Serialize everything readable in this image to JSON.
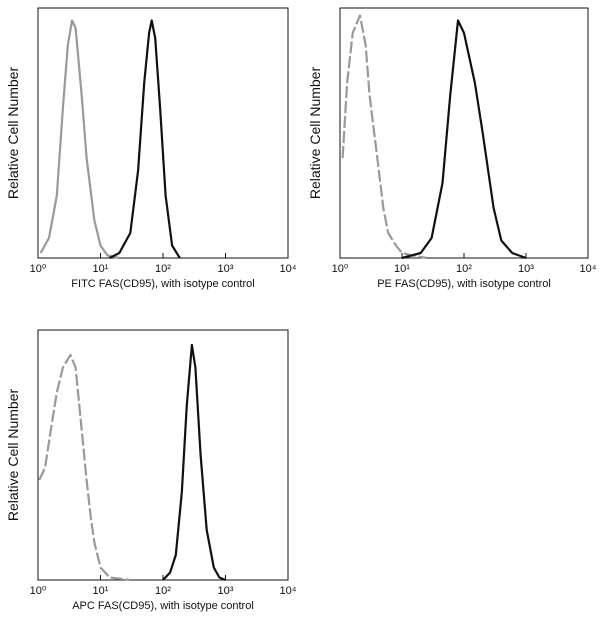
{
  "chart_data": [
    {
      "type": "line",
      "xlabel": "FITC  FAS(CD95),  with isotype control",
      "ylabel": "Relative Cell Number",
      "xscale": "log",
      "xlim": [
        1,
        10000
      ],
      "ylim": [
        0,
        100
      ],
      "xticks": [
        {
          "value": 1,
          "label": "10⁰"
        },
        {
          "value": 10,
          "label": "10¹"
        },
        {
          "value": 100,
          "label": "10²"
        },
        {
          "value": 1000,
          "label": "10³"
        },
        {
          "value": 10000,
          "label": "10⁴"
        }
      ],
      "series": [
        {
          "color": "#999999",
          "linestyle": "solid",
          "x": [
            1.1,
            1.5,
            2,
            2.5,
            3,
            3.5,
            4,
            5,
            6,
            8,
            10,
            13,
            20
          ],
          "values": [
            2,
            8,
            25,
            60,
            85,
            95,
            92,
            65,
            40,
            15,
            5,
            1,
            0
          ]
        },
        {
          "color": "#111111",
          "linestyle": "solid",
          "x": [
            14,
            20,
            30,
            40,
            50,
            60,
            66,
            75,
            90,
            110,
            140,
            186
          ],
          "values": [
            0,
            2,
            10,
            35,
            70,
            90,
            95,
            88,
            60,
            25,
            5,
            0
          ]
        }
      ]
    },
    {
      "type": "line",
      "xlabel": "PE  FAS(CD95),  with isotype control",
      "ylabel": "Relative Cell Number",
      "xscale": "log",
      "xlim": [
        1,
        10000
      ],
      "ylim": [
        0,
        100
      ],
      "xticks": [
        {
          "value": 1,
          "label": "10⁰"
        },
        {
          "value": 10,
          "label": "10¹"
        },
        {
          "value": 100,
          "label": "10²"
        },
        {
          "value": 1000,
          "label": "10³"
        },
        {
          "value": 10000,
          "label": "10⁴"
        }
      ],
      "series": [
        {
          "color": "#999999",
          "linestyle": "dashed",
          "x": [
            1.1,
            1.3,
            1.6,
            2.1,
            2.6,
            3,
            4,
            5,
            6,
            8,
            10,
            15,
            25
          ],
          "values": [
            40,
            70,
            90,
            97,
            85,
            65,
            40,
            20,
            10,
            5,
            2,
            1,
            0
          ]
        },
        {
          "color": "#111111",
          "linestyle": "solid",
          "x": [
            10,
            20,
            30,
            45,
            60,
            80,
            100,
            150,
            200,
            300,
            400,
            600,
            1000
          ],
          "values": [
            0,
            2,
            8,
            30,
            65,
            95,
            90,
            70,
            50,
            20,
            7,
            2,
            0
          ]
        }
      ]
    },
    {
      "type": "line",
      "xlabel": "APC FAS(CD95), with isotype control",
      "ylabel": "Relative Cell Number",
      "xscale": "log",
      "xlim": [
        1,
        10000
      ],
      "ylim": [
        0,
        100
      ],
      "xticks": [
        {
          "value": 1,
          "label": "10⁰"
        },
        {
          "value": 10,
          "label": "10¹"
        },
        {
          "value": 100,
          "label": "10²"
        },
        {
          "value": 1000,
          "label": "10³"
        },
        {
          "value": 10000,
          "label": "10⁴"
        }
      ],
      "series": [
        {
          "color": "#999999",
          "linestyle": "dashed",
          "x": [
            1.05,
            1.3,
            1.6,
            2,
            2.5,
            3.3,
            4,
            5,
            6,
            7,
            8,
            10,
            14,
            30
          ],
          "values": [
            40,
            45,
            60,
            75,
            85,
            90,
            85,
            60,
            40,
            25,
            15,
            5,
            1,
            0
          ]
        },
        {
          "color": "#111111",
          "linestyle": "solid",
          "x": [
            100,
            130,
            160,
            200,
            240,
            290,
            330,
            400,
            500,
            650,
            800,
            1000
          ],
          "values": [
            0,
            3,
            10,
            35,
            70,
            94,
            85,
            50,
            20,
            5,
            1,
            0
          ]
        }
      ]
    }
  ]
}
